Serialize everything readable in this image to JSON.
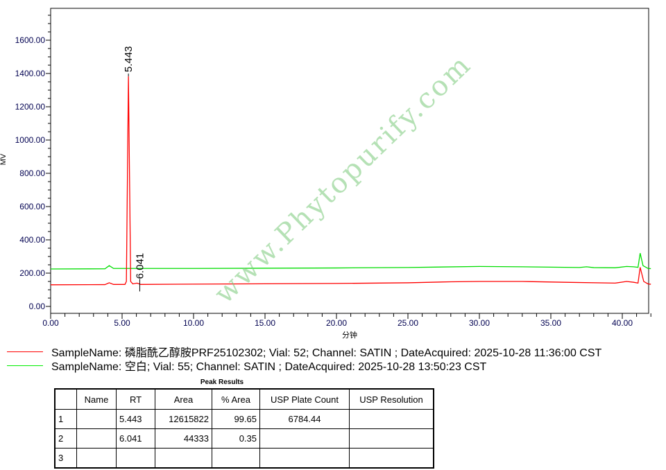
{
  "chart_data": {
    "type": "line",
    "xlabel": "分钟",
    "ylabel": "MV",
    "xlim": [
      0,
      42
    ],
    "ylim": [
      0,
      1790
    ],
    "xticks": [
      "0.00",
      "5.00",
      "10.00",
      "15.00",
      "20.00",
      "25.00",
      "30.00",
      "35.00",
      "40.00"
    ],
    "yticks": [
      "0.00",
      "200.00",
      "400.00",
      "600.00",
      "800.00",
      "1000.00",
      "1200.00",
      "1400.00",
      "1600.00"
    ],
    "grid": false,
    "peak_labels": [
      {
        "rt": 5.443,
        "label": "5.443",
        "height": 1383
      },
      {
        "rt": 6.041,
        "label": "6.041",
        "height": 140
      }
    ],
    "series": [
      {
        "name": "SampleName: 磷脂酰乙醇胺PRF25102302; Vial: 52; Channel: SATIN ; DateAcquired: 2025-10-28 11:36:00 CST",
        "color": "#ff0000",
        "points": [
          [
            0,
            130
          ],
          [
            3.8,
            131
          ],
          [
            4.1,
            142
          ],
          [
            4.4,
            132
          ],
          [
            5.2,
            132
          ],
          [
            5.3,
            150
          ],
          [
            5.443,
            1383
          ],
          [
            5.6,
            150
          ],
          [
            5.75,
            135
          ],
          [
            6.041,
            140
          ],
          [
            6.3,
            132
          ],
          [
            10,
            134
          ],
          [
            15,
            136
          ],
          [
            20,
            138
          ],
          [
            25,
            142
          ],
          [
            28,
            148
          ],
          [
            30,
            150
          ],
          [
            33,
            150
          ],
          [
            36,
            145
          ],
          [
            39.5,
            140
          ],
          [
            40.3,
            150
          ],
          [
            40.8,
            145
          ],
          [
            41.1,
            140
          ],
          [
            41.25,
            235
          ],
          [
            41.5,
            150
          ],
          [
            41.8,
            135
          ],
          [
            42,
            133
          ]
        ]
      },
      {
        "name": "SampleName: 空白; Vial: 55; Channel: SATIN ; DateAcquired: 2025-10-28 13:50:23 CST",
        "color": "#00dd00",
        "points": [
          [
            0,
            225
          ],
          [
            3.8,
            226
          ],
          [
            4.1,
            245
          ],
          [
            4.4,
            228
          ],
          [
            10,
            228
          ],
          [
            20,
            231
          ],
          [
            25,
            234
          ],
          [
            30,
            240
          ],
          [
            33,
            238
          ],
          [
            37,
            234
          ],
          [
            37.5,
            238
          ],
          [
            38,
            233
          ],
          [
            39.5,
            232
          ],
          [
            40.3,
            240
          ],
          [
            40.8,
            238
          ],
          [
            41.1,
            235
          ],
          [
            41.25,
            320
          ],
          [
            41.45,
            245
          ],
          [
            41.8,
            228
          ],
          [
            42,
            227
          ]
        ]
      }
    ]
  },
  "peak_results": {
    "title": "Peak Results",
    "headers": [
      "",
      "Name",
      "RT",
      "Area",
      "% Area",
      "USP Plate Count",
      "USP Resolution"
    ],
    "rows": [
      [
        "1",
        "",
        "5.443",
        "12615822",
        "99.65",
        "6784.44",
        ""
      ],
      [
        "2",
        "",
        "6.041",
        "44333",
        "0.35",
        "",
        ""
      ],
      [
        "3",
        "",
        "",
        "",
        "",
        "",
        ""
      ]
    ]
  },
  "watermark": "www.Phytopurify.com"
}
